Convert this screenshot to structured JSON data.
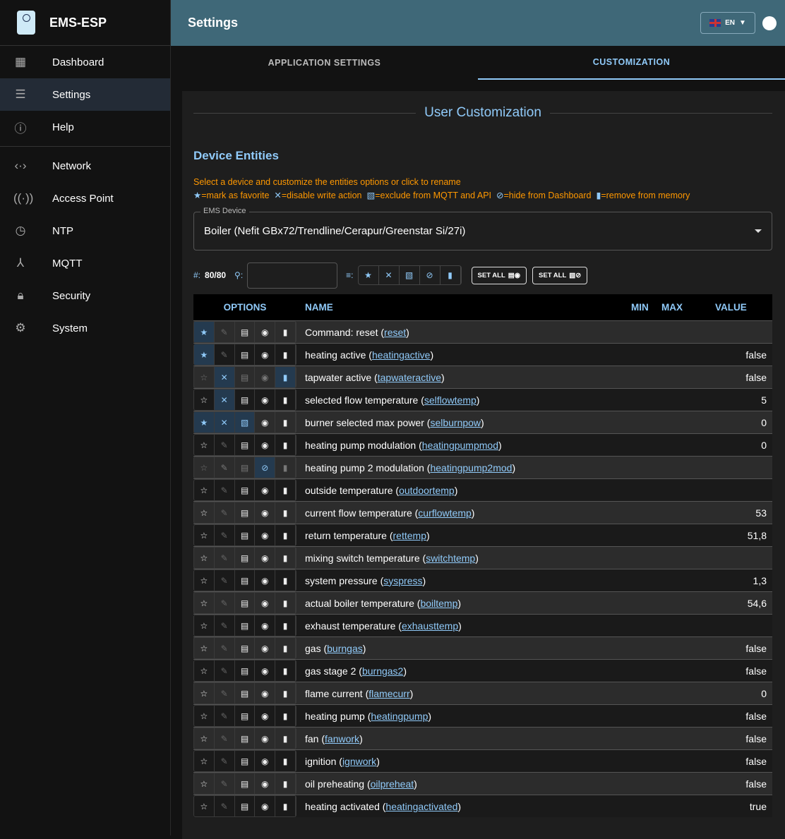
{
  "app": {
    "title": "EMS-ESP"
  },
  "sidebar": {
    "items": [
      {
        "label": "Dashboard",
        "icon": "dashboard-icon"
      },
      {
        "label": "Settings",
        "icon": "tune-icon",
        "active": true
      },
      {
        "label": "Help",
        "icon": "info-icon"
      },
      {
        "label": "Network",
        "icon": "network-icon"
      },
      {
        "label": "Access Point",
        "icon": "access-point-icon"
      },
      {
        "label": "NTP",
        "icon": "clock-icon"
      },
      {
        "label": "MQTT",
        "icon": "mqtt-icon"
      },
      {
        "label": "Security",
        "icon": "lock-icon"
      },
      {
        "label": "System",
        "icon": "gear-icon"
      }
    ]
  },
  "header": {
    "title": "Settings",
    "language": "EN"
  },
  "tabs": [
    "APPLICATION SETTINGS",
    "CUSTOMIZATION"
  ],
  "panel": {
    "title": "User Customization",
    "subtitle": "Device Entities",
    "help": "Select a device and customize the entities options or click to rename",
    "legend": [
      "=mark as favorite",
      "=disable write action",
      "=exclude from MQTT and API",
      "=hide from Dashboard",
      "=remove from memory"
    ],
    "device_label": "EMS Device",
    "device": "Boiler (Nefit GBx72/Trendline/Cerapur/Greenstar Si/27i)",
    "count_label": "#:",
    "count": "80/80",
    "search_value": "",
    "set_all": "SET ALL"
  },
  "table": {
    "headers": {
      "options": "OPTIONS",
      "name": "NAME",
      "min": "MIN",
      "max": "MAX",
      "value": "VALUE"
    },
    "rows": [
      {
        "name": "Command: reset",
        "id": "reset",
        "value": "",
        "fav": true,
        "write": "na"
      },
      {
        "name": "heating active",
        "id": "heatingactive",
        "value": "false",
        "fav": true,
        "write": "na"
      },
      {
        "name": "tapwater active",
        "id": "tapwateractive",
        "value": "false",
        "write": "disabled",
        "deleted": true
      },
      {
        "name": "selected flow temperature",
        "id": "selflowtemp",
        "value": "5",
        "write": "disabled"
      },
      {
        "name": "burner selected max power",
        "id": "selburnpow",
        "value": "0",
        "fav": true,
        "write": "disabled",
        "mqtt_excluded": true
      },
      {
        "name": "heating pump modulation",
        "id": "heatingpumpmod",
        "value": "0",
        "write": "na"
      },
      {
        "name": "heating pump 2 modulation",
        "id": "heatingpump2mod",
        "value": "",
        "write": "na",
        "web_hidden": true
      },
      {
        "name": "outside temperature",
        "id": "outdoortemp",
        "value": "",
        "write": "na"
      },
      {
        "name": "current flow temperature",
        "id": "curflowtemp",
        "value": "53",
        "write": "na"
      },
      {
        "name": "return temperature",
        "id": "rettemp",
        "value": "51,8",
        "write": "na"
      },
      {
        "name": "mixing switch temperature",
        "id": "switchtemp",
        "value": "",
        "write": "na"
      },
      {
        "name": "system pressure",
        "id": "syspress",
        "value": "1,3",
        "write": "na"
      },
      {
        "name": "actual boiler temperature",
        "id": "boiltemp",
        "value": "54,6",
        "write": "na"
      },
      {
        "name": "exhaust temperature",
        "id": "exhausttemp",
        "value": "",
        "write": "na"
      },
      {
        "name": "gas",
        "id": "burngas",
        "value": "false",
        "write": "na"
      },
      {
        "name": "gas stage 2",
        "id": "burngas2",
        "value": "false",
        "write": "na"
      },
      {
        "name": "flame current",
        "id": "flamecurr",
        "value": "0",
        "write": "na"
      },
      {
        "name": "heating pump",
        "id": "heatingpump",
        "value": "false",
        "write": "na"
      },
      {
        "name": "fan",
        "id": "fanwork",
        "value": "false",
        "write": "na"
      },
      {
        "name": "ignition",
        "id": "ignwork",
        "value": "false",
        "write": "na"
      },
      {
        "name": "oil preheating",
        "id": "oilpreheat",
        "value": "false",
        "write": "na"
      },
      {
        "name": "heating activated",
        "id": "heatingactivated",
        "value": "true",
        "write": "na"
      }
    ]
  },
  "colors": {
    "accent": "#90caf9",
    "warning": "#ff9800",
    "header": "#3f6878"
  }
}
